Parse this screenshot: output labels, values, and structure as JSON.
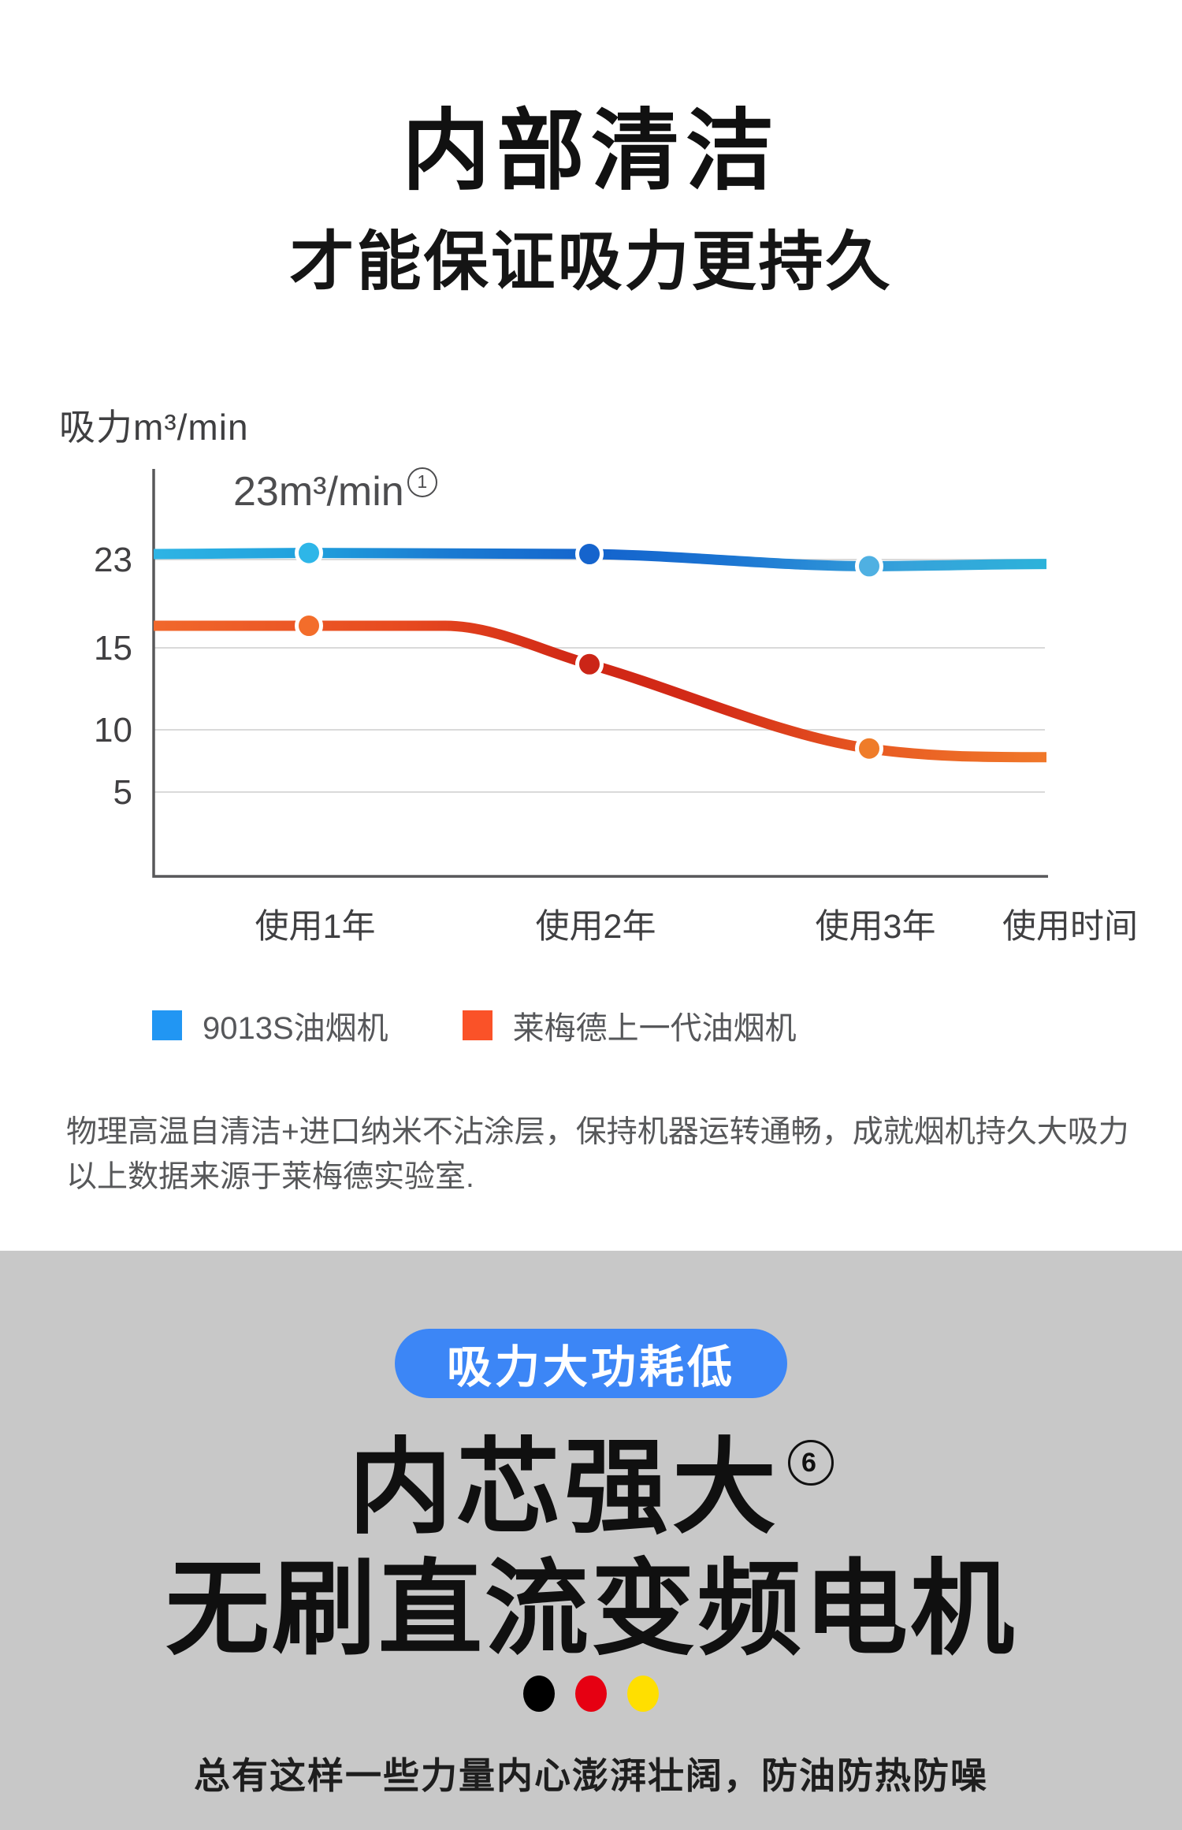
{
  "header": {
    "title": "内部清洁",
    "subtitle": "才能保证吸力更持久"
  },
  "chart_data": {
    "type": "line",
    "unit_label": "吸力m³/min",
    "annotation": {
      "text": "23m³/min",
      "sup": "1"
    },
    "x_categories": [
      "使用1年",
      "使用2年",
      "使用3年"
    ],
    "x_axis_label": "使用时间",
    "y_ticks": [
      23,
      15,
      10,
      5
    ],
    "ylim": [
      0,
      26
    ],
    "grid": true,
    "legend_position": "bottom",
    "series": [
      {
        "name": "9013S油烟机",
        "values": [
          23.6,
          23.5,
          22.4
        ],
        "start_value": 23.5,
        "end_value": 22.6,
        "flat_shoulder": false,
        "gradient": [
          [
            0,
            "#2eb4e4"
          ],
          [
            0.18,
            "#209fdc"
          ],
          [
            0.32,
            "#1b7cd2"
          ],
          [
            0.5,
            "#1464cd"
          ],
          [
            0.64,
            "#1b74d2"
          ],
          [
            0.84,
            "#36a2da"
          ],
          [
            1,
            "#2cb2da"
          ]
        ],
        "dot_colors": [
          "#2eb6e8",
          "#1564cd",
          "#4fb0e2"
        ]
      },
      {
        "name": "莱梅德上一代油烟机",
        "values": [
          17,
          14,
          8.5
        ],
        "start_value": 17,
        "end_value": 7.8,
        "flat_shoulder": true,
        "gradient": [
          [
            0,
            "#f1682c"
          ],
          [
            0.28,
            "#e74a20"
          ],
          [
            0.48,
            "#d02715"
          ],
          [
            0.62,
            "#d32a17"
          ],
          [
            0.82,
            "#e95d23"
          ],
          [
            1,
            "#f0782a"
          ]
        ],
        "dot_colors": [
          "#f36d2b",
          "#cb2517",
          "#ef7c29"
        ]
      }
    ],
    "legend": [
      {
        "label": "9013S油烟机",
        "color": "#2196f3"
      },
      {
        "label": "莱梅德上一代油烟机",
        "color": "#fa5228"
      }
    ]
  },
  "notes": {
    "line1": "物理高温自清洁+进口纳米不沾涂层，保持机器运转通畅，成就烟机持久大吸力",
    "line2": "以上数据来源于莱梅德实验室."
  },
  "section2": {
    "badge": "吸力大功耗低",
    "badge_color": "#3c86f6",
    "bg_color": "#c8c8c8",
    "heading": "内芯强大",
    "heading_sup": "6",
    "subheading": "无刷直流变频电机",
    "dots": [
      "#000000",
      "#e60012",
      "#ffdf00"
    ],
    "footer": "总有这样一些力量内心澎湃壮阔，防油防热防噪"
  }
}
